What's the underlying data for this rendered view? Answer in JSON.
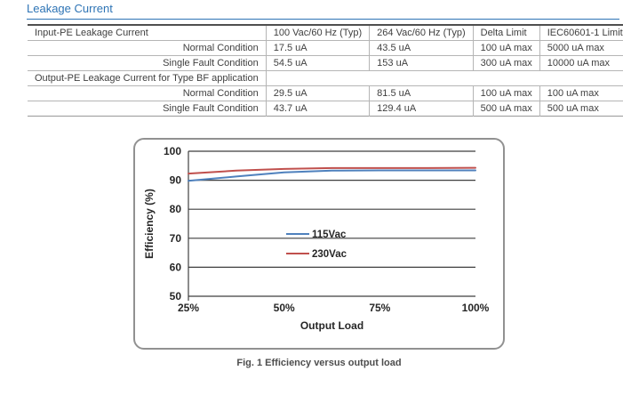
{
  "page": {
    "title": "Leakage Current"
  },
  "colors": {
    "accent": "#2e74b5",
    "table_text": "#3f3f3f",
    "grid": "#3f3f3f",
    "series_blue": "#4f81bd",
    "series_red": "#c0504d"
  },
  "table": {
    "header": {
      "label": "Input-PE Leakage Current",
      "cols": [
        "100 Vac/60 Hz (Typ)",
        "264 Vac/60 Hz (Typ)",
        "Delta Limit",
        "IEC60601-1 Limit"
      ]
    },
    "rows": [
      {
        "label": "Normal Condition",
        "values": [
          "17.5 uA",
          "43.5 uA",
          "100 uA max",
          "5000 uA max"
        ]
      },
      {
        "label": "Single Fault Condition",
        "values": [
          "54.5 uA",
          "153 uA",
          "300 uA max",
          "10000 uA max"
        ]
      },
      {
        "label": "Output-PE Leakage Current for Type BF application",
        "values": []
      },
      {
        "label": "Normal Condition",
        "values": [
          "29.5 uA",
          "81.5 uA",
          "100 uA max",
          "100 uA max"
        ]
      },
      {
        "label": "Single Fault Condition",
        "values": [
          "43.7 uA",
          "129.4 uA",
          "500 uA max",
          "500 uA max"
        ]
      }
    ]
  },
  "chart_data": {
    "type": "line",
    "title": "Fig. 1 Efficiency versus output load",
    "xlabel": "Output Load",
    "ylabel": "Efficiency (%)",
    "x": [
      25,
      37.5,
      50,
      62.5,
      75,
      87.5,
      100
    ],
    "x_ticks": [
      25,
      50,
      75,
      100
    ],
    "x_tick_labels": [
      "25%",
      "50%",
      "75%",
      "100%"
    ],
    "ylim": [
      50,
      100
    ],
    "y_ticks": [
      50,
      60,
      70,
      80,
      90,
      100
    ],
    "grid": "horizontal-only",
    "legend_position": "center-inside",
    "series": [
      {
        "name": "115Vac",
        "color": "#4f81bd",
        "values": [
          89.8,
          91.3,
          92.7,
          93.3,
          93.4,
          93.4,
          93.4
        ]
      },
      {
        "name": "230Vac",
        "color": "#c0504d",
        "values": [
          92.3,
          93.3,
          93.9,
          94.2,
          94.2,
          94.2,
          94.3
        ]
      }
    ]
  }
}
